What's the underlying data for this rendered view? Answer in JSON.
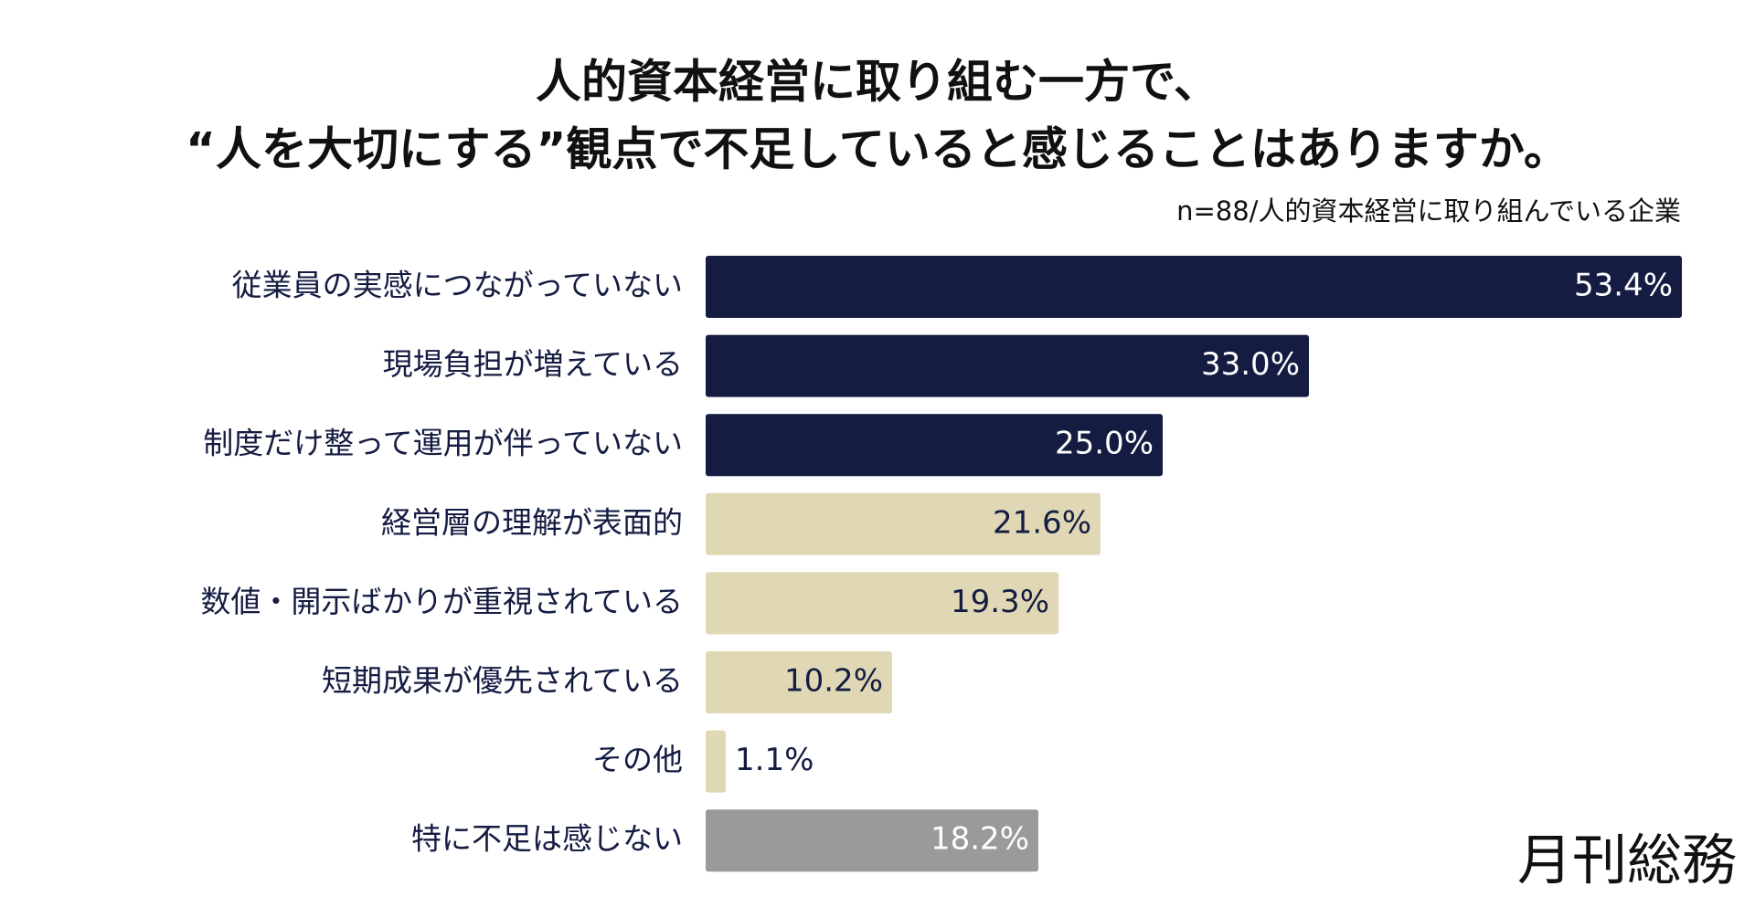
{
  "chart_data": {
    "type": "barh",
    "title": [
      "人的資本経営に取り組む一方で、",
      "“人を大切にする”観点で不足していると感じることはありますか。"
    ],
    "subtitle": "n=88/人的資本経営に取り組んでいる企業",
    "brand": "月刊総務",
    "categories": [
      "従業員の実感につながっていない",
      "現場負担が増えている",
      "制度だけ整って運用が伴っていない",
      "経営層の理解が表面的",
      "数値・開示ばかりが重視されている",
      "短期成果が優先されている",
      "その他",
      "特に不足は感じない"
    ],
    "values": [
      53.4,
      33.0,
      25.0,
      21.6,
      19.3,
      10.2,
      1.1,
      18.2
    ],
    "value_labels": [
      "53.4%",
      "33.0%",
      "25.0%",
      "21.6%",
      "19.3%",
      "10.2%",
      "1.1%",
      "18.2%"
    ],
    "colors": [
      "#141c42",
      "#141c42",
      "#141c42",
      "#e0d8b4",
      "#e0d8b4",
      "#e0d8b4",
      "#e0d8b4",
      "#9a9b98"
    ]
  }
}
